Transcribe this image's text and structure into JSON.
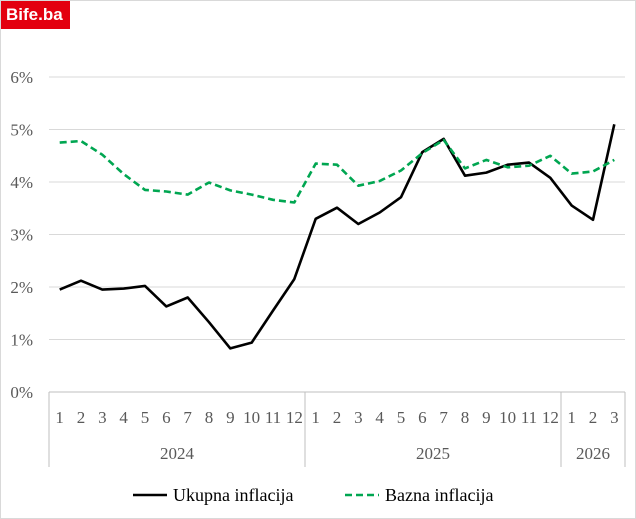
{
  "logo": {
    "text": "Bife.ba"
  },
  "chart_data": {
    "type": "line",
    "title": "",
    "xlabel": "",
    "ylabel": "",
    "ylim": [
      0,
      6
    ],
    "y_ticks": [
      "0%",
      "1%",
      "2%",
      "3%",
      "4%",
      "5%",
      "6%"
    ],
    "grid": true,
    "legend_position": "bottom",
    "categories": [
      "1",
      "2",
      "3",
      "4",
      "5",
      "6",
      "7",
      "8",
      "9",
      "10",
      "11",
      "12",
      "1",
      "2",
      "3",
      "4",
      "5",
      "6",
      "7",
      "8",
      "9",
      "10",
      "11",
      "12",
      "1",
      "2",
      "3"
    ],
    "year_groups": [
      {
        "label": "2024",
        "count": 12
      },
      {
        "label": "2025",
        "count": 12
      },
      {
        "label": "2026",
        "count": 3
      }
    ],
    "series": [
      {
        "name": "Ukupna inflacija",
        "color": "#000000",
        "style": "solid",
        "values": [
          1.95,
          2.12,
          1.95,
          1.97,
          2.02,
          1.63,
          1.8,
          1.33,
          0.83,
          0.94,
          1.55,
          2.15,
          3.3,
          3.51,
          3.2,
          3.42,
          3.71,
          4.57,
          4.82,
          4.12,
          4.18,
          4.33,
          4.37,
          4.08,
          3.55,
          3.28,
          5.1
        ]
      },
      {
        "name": "Bazna inflacija",
        "color": "#00a651",
        "style": "dashed",
        "values": [
          4.75,
          4.78,
          4.52,
          4.15,
          3.85,
          3.82,
          3.76,
          3.99,
          3.84,
          3.76,
          3.66,
          3.61,
          4.35,
          4.33,
          3.93,
          4.02,
          4.22,
          4.55,
          4.8,
          4.26,
          4.42,
          4.28,
          4.31,
          4.5,
          4.16,
          4.2,
          4.42
        ]
      }
    ]
  }
}
